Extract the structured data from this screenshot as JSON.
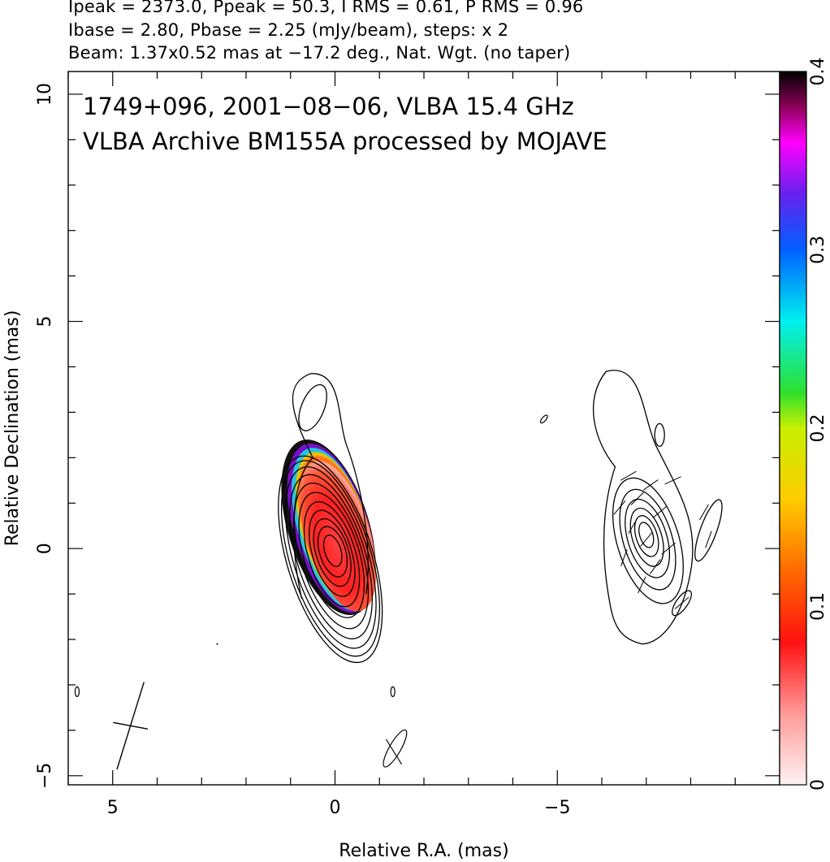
{
  "header": {
    "line1": "Ipeak = 2373.0, Ppeak = 50.3, I RMS = 0.61, P RMS = 0.96",
    "line2": "Ibase = 2.80, Pbase = 2.25 (mJy/beam), steps: x 2",
    "line3": "Beam: 1.37x0.52 mas at −17.2 deg., Nat. Wgt. (no taper)"
  },
  "inset": {
    "line1": "1749+096, 2001−08−06, VLBA 15.4 GHz",
    "line2": "VLBA Archive BM155A processed by MOJAVE"
  },
  "chart_data": {
    "type": "contour",
    "xlabel": "Relative R.A. (mas)",
    "ylabel": "Relative Declination (mas)",
    "xlim": [
      6.0,
      -10.0
    ],
    "ylim": [
      -5.2,
      10.5
    ],
    "xticks": [
      5,
      0,
      -5
    ],
    "xtick_labels": [
      "5",
      "0",
      "−5"
    ],
    "yticks": [
      -5,
      0,
      5,
      10
    ],
    "ytick_labels": [
      "−5",
      "0",
      "5",
      "10"
    ],
    "colorbar": {
      "range": [
        0,
        0.4
      ],
      "ticks": [
        0,
        0.1,
        0.2,
        0.3,
        0.4
      ],
      "tick_labels": [
        "0",
        "0.1",
        "0.2",
        "0.3",
        "0.4"
      ]
    },
    "beam": {
      "major_mas": 1.37,
      "minor_mas": 0.52,
      "pa_deg": -17.2
    },
    "stokes_i_peak_mJy_per_beam": 2373.0,
    "polarization_peak_mJy_per_beam": 50.3,
    "contour_base_mJy_per_beam": 2.8,
    "contour_step_factor": 2
  }
}
